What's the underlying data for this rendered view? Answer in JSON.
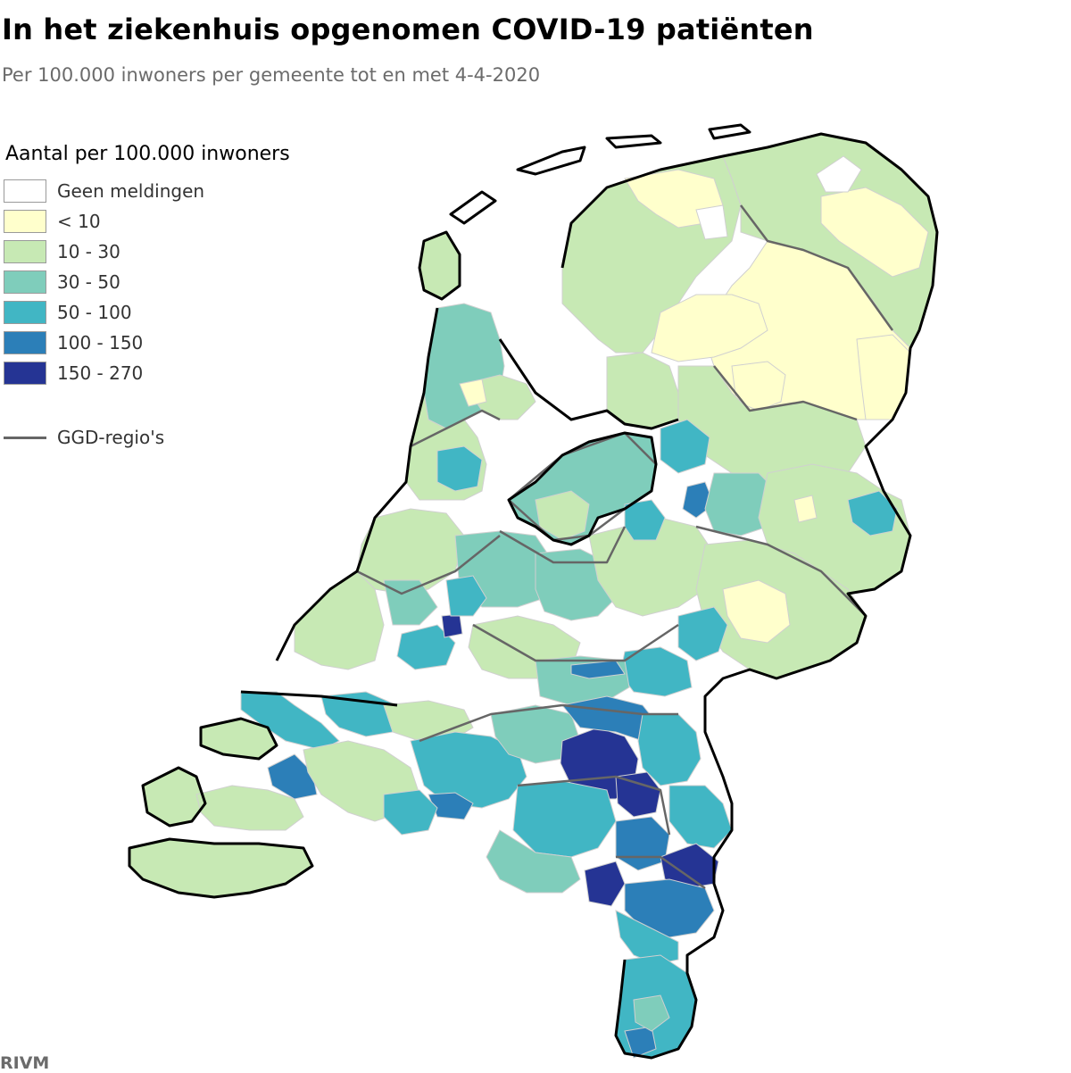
{
  "header": {
    "title": "In het ziekenhuis opgenomen COVID-19 patiënten",
    "subtitle": "Per 100.000 inwoners per gemeente tot en met 4-4-2020"
  },
  "legend": {
    "title": "Aantal per 100.000 inwoners",
    "classes": [
      {
        "label": "Geen meldingen",
        "color": "#ffffff"
      },
      {
        "label": "< 10",
        "color": "#ffffcc"
      },
      {
        "label": "10 - 30",
        "color": "#c7e9b4"
      },
      {
        "label": "30 - 50",
        "color": "#7fcdbb"
      },
      {
        "label": "50 - 100",
        "color": "#41b6c4"
      },
      {
        "label": "100 - 150",
        "color": "#2c7fb8"
      },
      {
        "label": "150 - 270",
        "color": "#253494"
      }
    ],
    "ggd_label": "GGD-regio's",
    "ggd_color": "#666666"
  },
  "source": "RIVM"
}
